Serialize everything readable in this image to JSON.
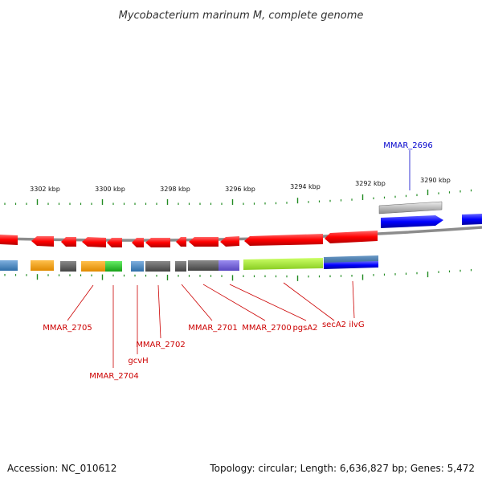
{
  "title": "Mycobacterium marinum M, complete genome",
  "footer": {
    "accession": "Accession: NC_010612",
    "summary": "Topology: circular; Length: 6,636,827 bp; Genes: 5,472"
  },
  "scale": {
    "ticks": [
      "3302 kbp",
      "3300 kbp",
      "3298 kbp",
      "3296 kbp",
      "3294 kbp",
      "3292 kbp",
      "3290 kbp"
    ]
  },
  "gene_labels": {
    "top": [
      {
        "text": "MMAR_2696",
        "color": "#0000cc"
      }
    ],
    "bottom": [
      {
        "text": "MMAR_2705",
        "color": "#cc0000"
      },
      {
        "text": "MMAR_2704",
        "color": "#cc0000"
      },
      {
        "text": "gcvH",
        "color": "#cc0000"
      },
      {
        "text": "MMAR_2702",
        "color": "#cc0000"
      },
      {
        "text": "MMAR_2701",
        "color": "#cc0000"
      },
      {
        "text": "MMAR_2700",
        "color": "#cc0000"
      },
      {
        "text": "pgsA2",
        "color": "#cc0000"
      },
      {
        "text": "secA2",
        "color": "#cc0000"
      },
      {
        "text": "ilvG",
        "color": "#cc0000"
      }
    ]
  },
  "colors": {
    "forward_strand": "#0000ee",
    "reverse_strand": "#ee0000",
    "backbone": "#888888",
    "ticks": "#228b22",
    "pseudo": "#bbbbbb"
  }
}
